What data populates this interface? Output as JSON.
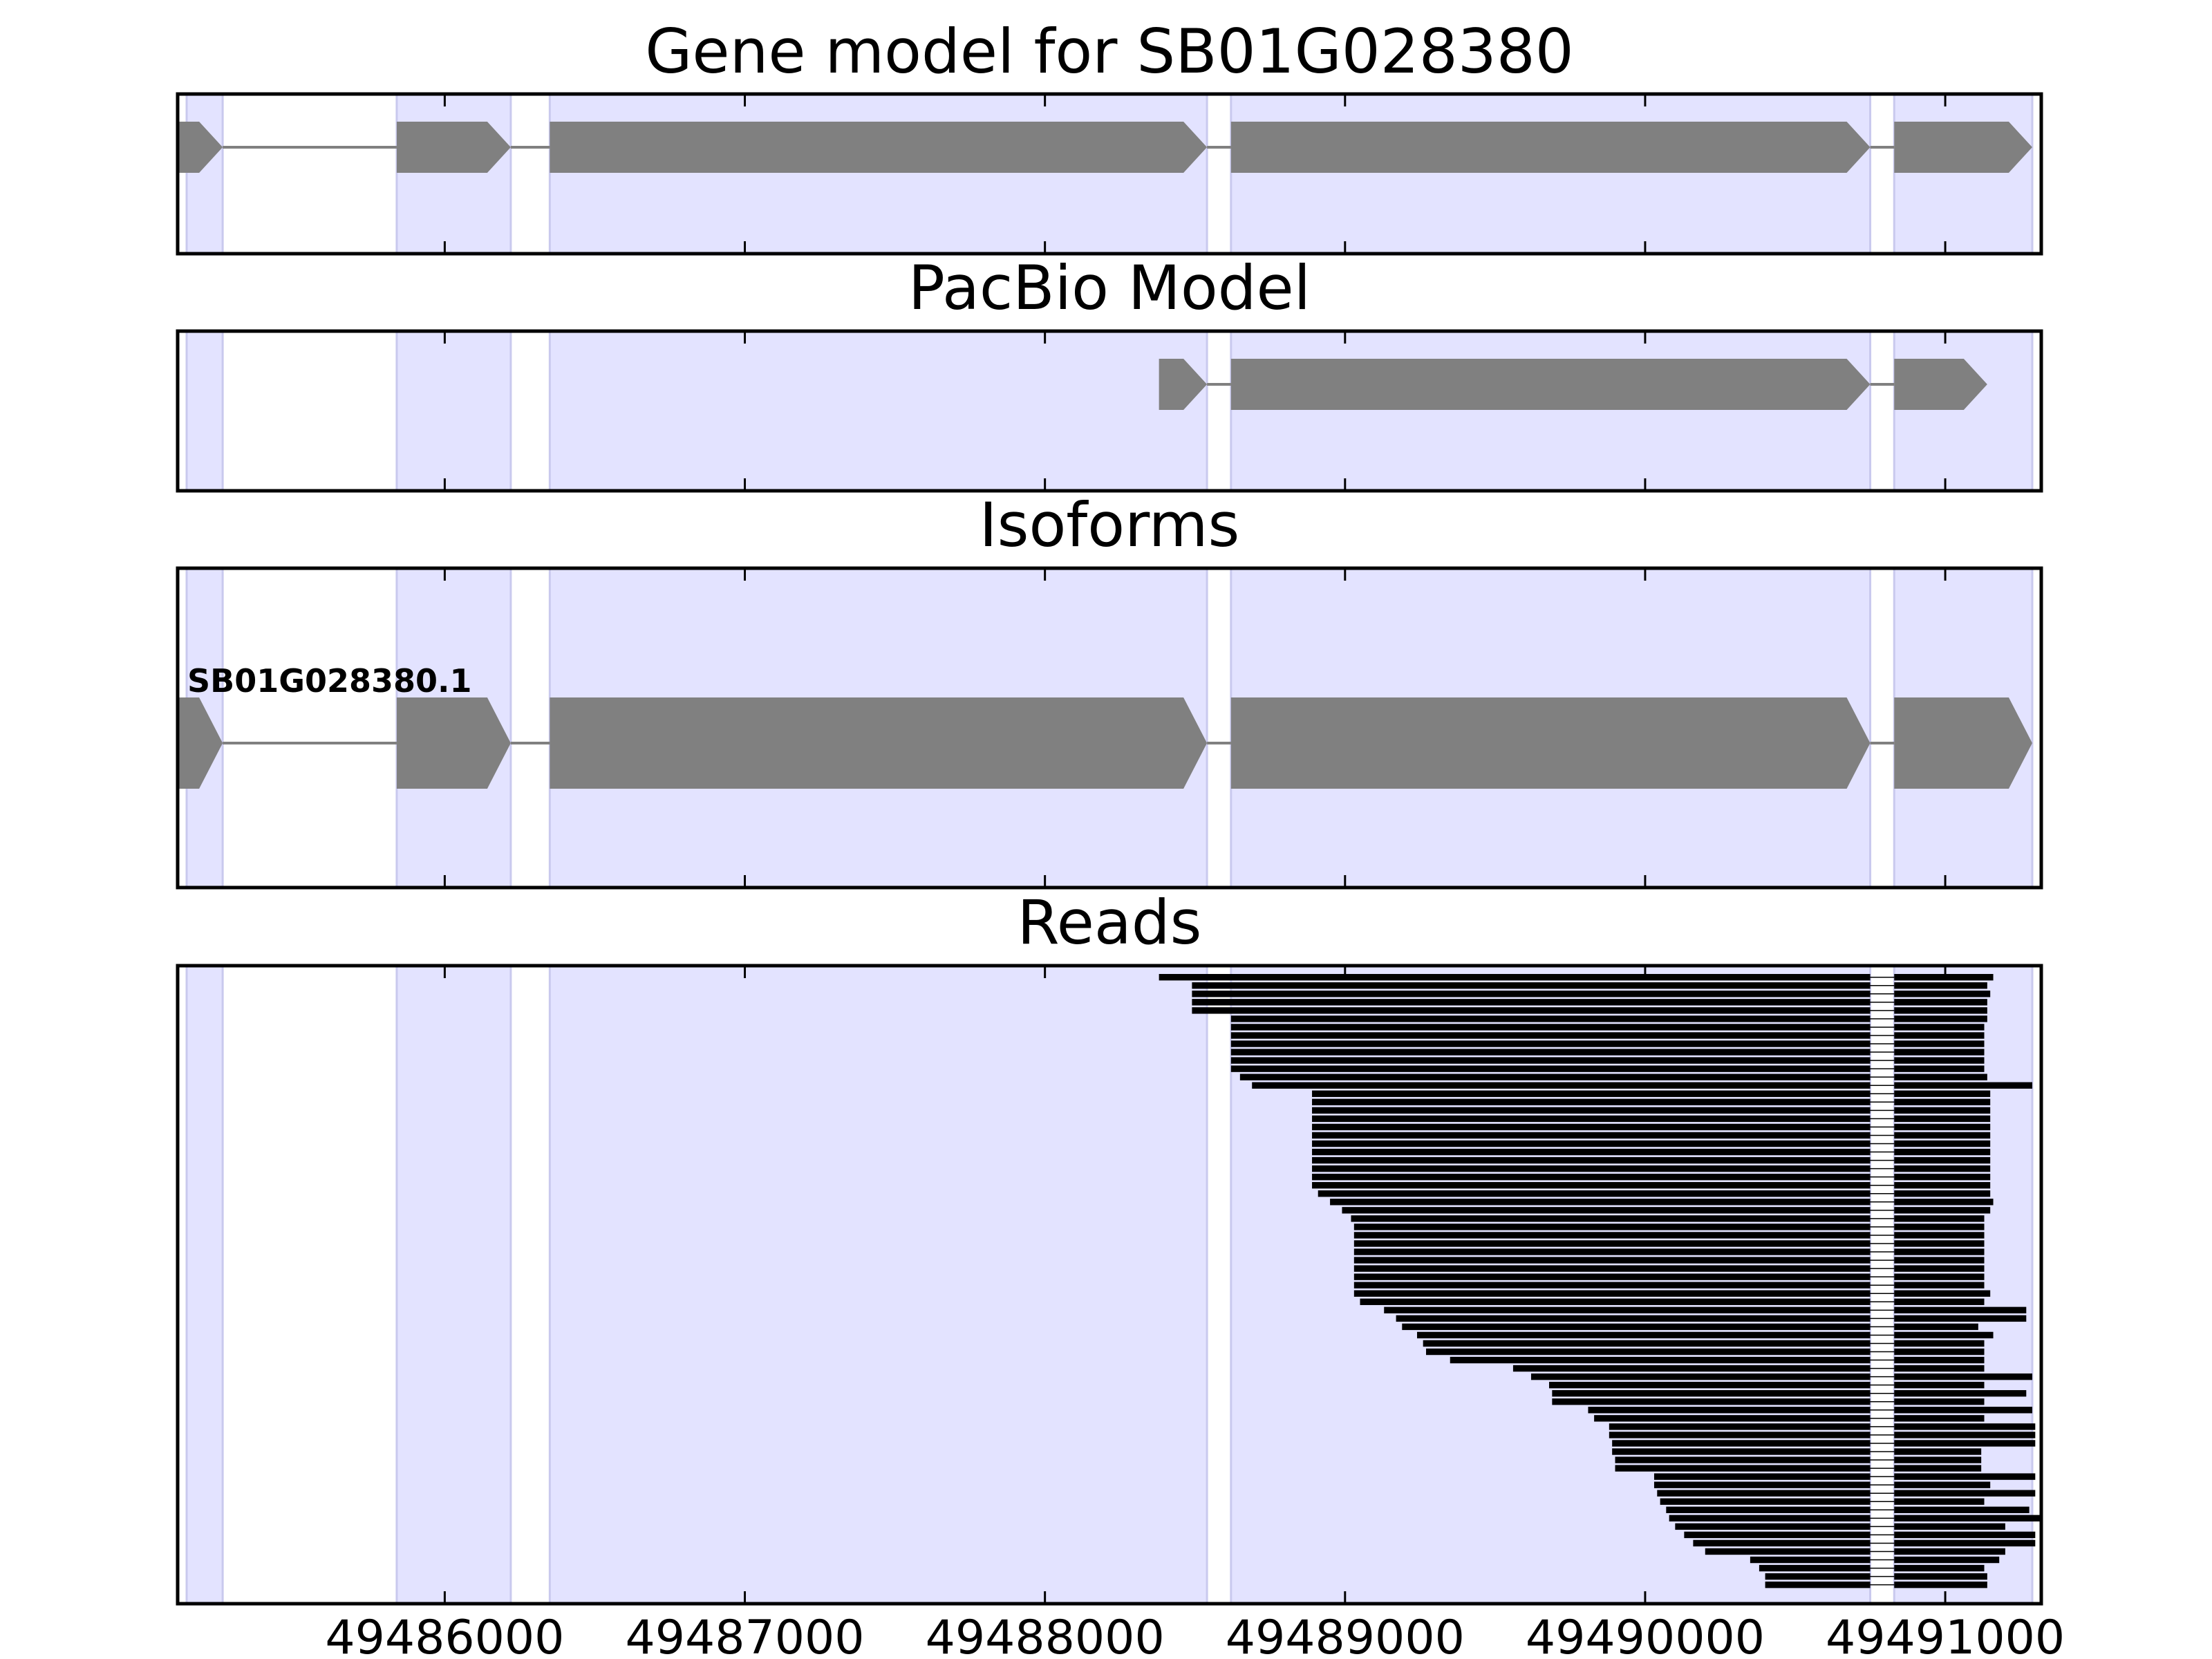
{
  "chart_data": {
    "type": "gene-track",
    "x_range": [
      49485110,
      49491320
    ],
    "x_ticks": [
      49486000,
      49487000,
      49488000,
      49489000,
      49490000,
      49491000
    ],
    "x_tick_labels": [
      "49486000",
      "49487000",
      "49488000",
      "49489000",
      "49490000",
      "49491000"
    ],
    "colors": {
      "exon_shade": "#e3e3ff",
      "exon_shade_edge": "#c9c9ee",
      "feature": "#808080",
      "read": "#000000",
      "frame": "#000000"
    },
    "shaded_regions": [
      [
        49485140,
        49485260
      ],
      [
        49485840,
        49486220
      ],
      [
        49486350,
        49488540
      ],
      [
        49488620,
        49490750
      ],
      [
        49490830,
        49491290
      ]
    ],
    "panels": [
      {
        "title": "Gene model for SB01G028380",
        "kind": "model",
        "exons": [
          [
            49485110,
            49485260
          ],
          [
            49485840,
            49486220
          ],
          [
            49486350,
            49488540
          ],
          [
            49488620,
            49490750
          ],
          [
            49490830,
            49491290
          ]
        ]
      },
      {
        "title": "PacBio Model",
        "kind": "model",
        "exons": [
          [
            49488380,
            49488540
          ],
          [
            49488620,
            49490750
          ],
          [
            49490830,
            49491140
          ]
        ]
      },
      {
        "title": "Isoforms",
        "kind": "isoforms",
        "isoforms": [
          {
            "label": "SB01G028380.1",
            "exons": [
              [
                49485110,
                49485260
              ],
              [
                49485840,
                49486220
              ],
              [
                49486350,
                49488540
              ],
              [
                49488620,
                49490750
              ],
              [
                49490830,
                49491290
              ]
            ]
          }
        ]
      },
      {
        "title": "Reads",
        "kind": "reads",
        "intron": [
          49490750,
          49490830
        ],
        "reads": [
          [
            49488380,
            49491160
          ],
          [
            49488490,
            49491140
          ],
          [
            49488490,
            49491150
          ],
          [
            49488490,
            49491140
          ],
          [
            49488490,
            49491140
          ],
          [
            49488620,
            49491140
          ],
          [
            49488620,
            49491130
          ],
          [
            49488620,
            49491130
          ],
          [
            49488620,
            49491130
          ],
          [
            49488620,
            49491130
          ],
          [
            49488620,
            49491130
          ],
          [
            49488620,
            49491130
          ],
          [
            49488650,
            49491140
          ],
          [
            49488690,
            49491290
          ],
          [
            49488890,
            49491150
          ],
          [
            49488890,
            49491150
          ],
          [
            49488890,
            49491150
          ],
          [
            49488890,
            49491150
          ],
          [
            49488890,
            49491150
          ],
          [
            49488890,
            49491150
          ],
          [
            49488890,
            49491150
          ],
          [
            49488890,
            49491150
          ],
          [
            49488890,
            49491150
          ],
          [
            49488890,
            49491150
          ],
          [
            49488890,
            49491150
          ],
          [
            49488890,
            49491150
          ],
          [
            49488910,
            49491150
          ],
          [
            49488950,
            49491160
          ],
          [
            49488990,
            49491150
          ],
          [
            49489020,
            49491130
          ],
          [
            49489030,
            49491130
          ],
          [
            49489030,
            49491130
          ],
          [
            49489030,
            49491130
          ],
          [
            49489030,
            49491130
          ],
          [
            49489030,
            49491130
          ],
          [
            49489030,
            49491130
          ],
          [
            49489030,
            49491130
          ],
          [
            49489030,
            49491130
          ],
          [
            49489030,
            49491150
          ],
          [
            49489050,
            49491130
          ],
          [
            49489130,
            49491270
          ],
          [
            49489170,
            49491270
          ],
          [
            49489190,
            49491110
          ],
          [
            49489240,
            49491160
          ],
          [
            49489260,
            49491130
          ],
          [
            49489270,
            49491130
          ],
          [
            49489350,
            49491130
          ],
          [
            49489560,
            49491130
          ],
          [
            49489620,
            49491290
          ],
          [
            49489680,
            49491130
          ],
          [
            49489690,
            49491270
          ],
          [
            49489690,
            49491130
          ],
          [
            49489810,
            49491290
          ],
          [
            49489830,
            49491130
          ],
          [
            49489880,
            49491300
          ],
          [
            49489880,
            49491300
          ],
          [
            49489890,
            49491300
          ],
          [
            49489890,
            49491120
          ],
          [
            49489900,
            49491120
          ],
          [
            49489900,
            49491120
          ],
          [
            49490030,
            49491300
          ],
          [
            49490030,
            49491150
          ],
          [
            49490040,
            49491300
          ],
          [
            49490050,
            49491130
          ],
          [
            49490070,
            49491280
          ],
          [
            49490080,
            49491320
          ],
          [
            49490100,
            49491200
          ],
          [
            49490130,
            49491300
          ],
          [
            49490160,
            49491300
          ],
          [
            49490200,
            49491200
          ],
          [
            49490350,
            49491180
          ],
          [
            49490380,
            49491130
          ],
          [
            49490400,
            49491140
          ],
          [
            49490400,
            49491140
          ]
        ]
      }
    ]
  }
}
